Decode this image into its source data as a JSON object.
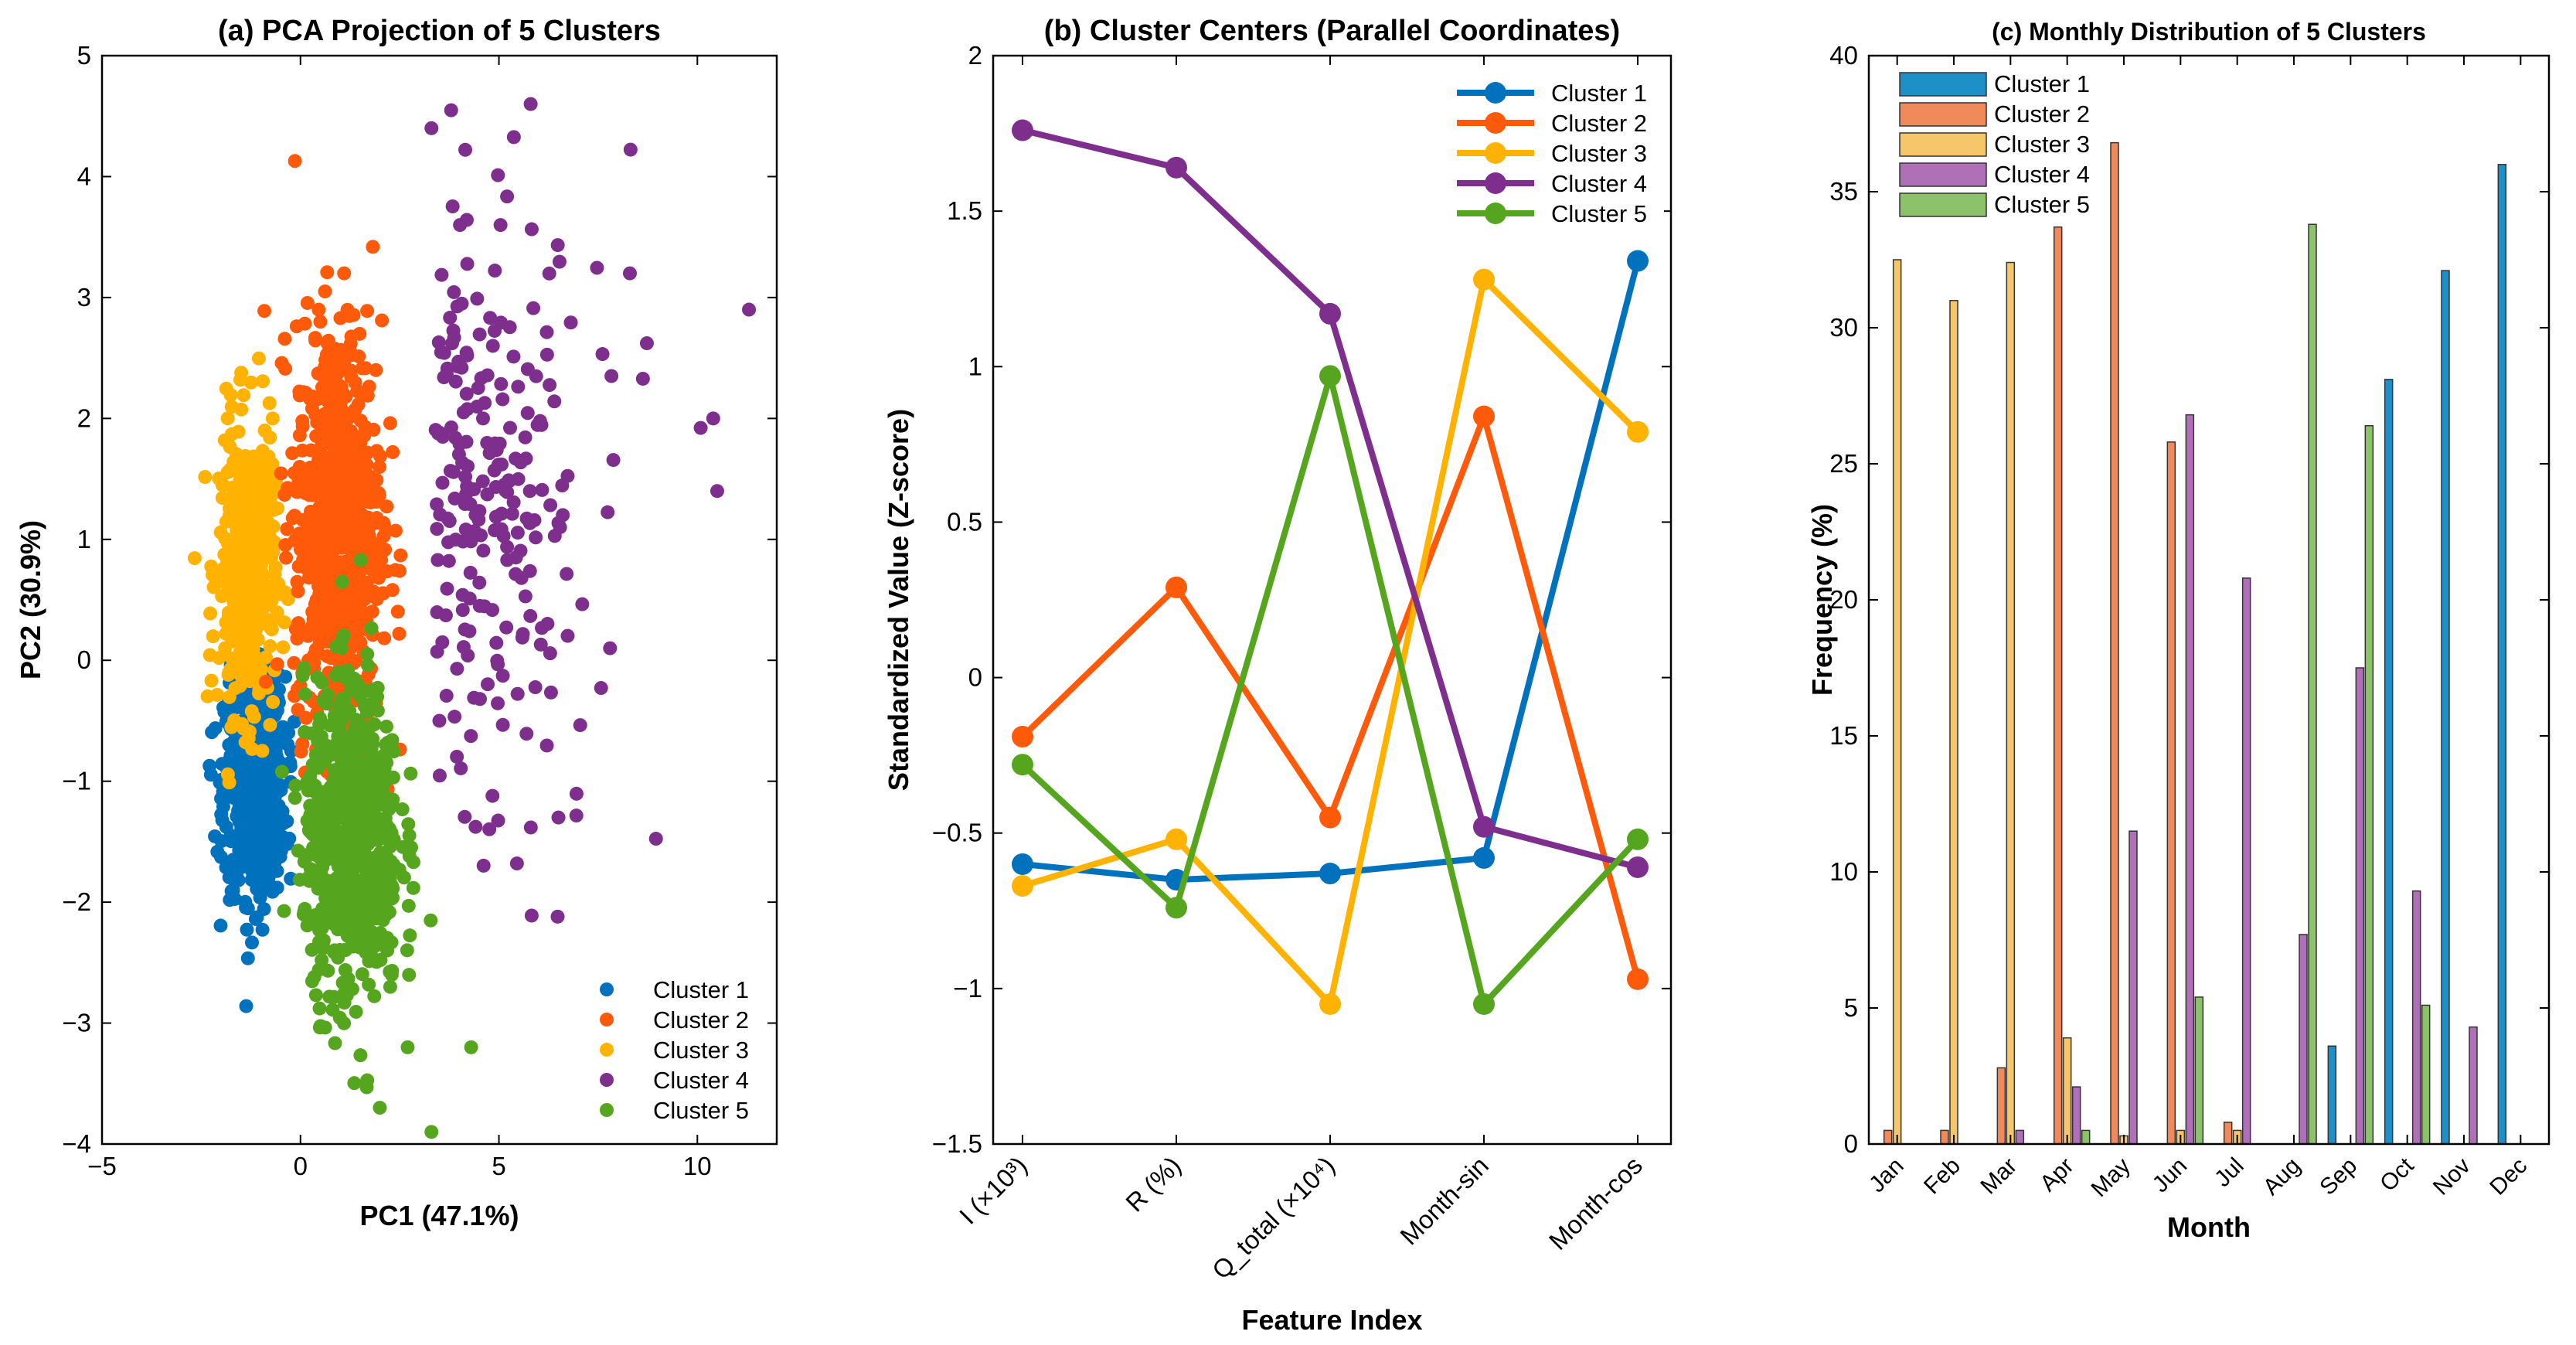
{
  "chart_data": [
    {
      "type": "scatter",
      "title": "(a) PCA Projection of 5 Clusters",
      "xlabel": "PC1 (47.1%)",
      "ylabel": "PC2 (30.9%)",
      "xlim": [
        -5,
        12
      ],
      "ylim": [
        -4,
        5
      ],
      "xticks": [
        -5,
        0,
        5,
        10
      ],
      "yticks": [
        -4,
        -3,
        -2,
        -1,
        0,
        1,
        2,
        3,
        4,
        5
      ],
      "legend_position": "bottom-right",
      "series": [
        {
          "name": "Cluster 1",
          "color": "#0072BD",
          "x": [
            -1.2,
            -1.5,
            -0.9,
            -1.8,
            -1.1,
            -0.7,
            -1.4,
            -1.6,
            -0.8,
            -1.3
          ],
          "y": [
            -0.6,
            -1.0,
            -1.4,
            -0.7,
            -1.8,
            -0.3,
            -1.2,
            -0.9,
            -1.6,
            -0.4
          ]
        },
        {
          "name": "Cluster 2",
          "color": "#FF5A0A",
          "x": [
            0.3,
            0.8,
            1.2,
            0.5,
            1.6,
            0.9,
            0.2,
            1.9,
            1.1,
            0.6
          ],
          "y": [
            0.4,
            1.2,
            2.0,
            2.8,
            0.9,
            1.6,
            0.0,
            2.4,
            3.2,
            1.9
          ]
        },
        {
          "name": "Cluster 3",
          "color": "#FFB300",
          "x": [
            -1.8,
            -1.5,
            -1.2,
            -1.0,
            -0.8,
            -1.6,
            -1.3,
            -0.9,
            -1.9,
            -0.7
          ],
          "y": [
            -0.1,
            0.3,
            0.8,
            1.2,
            1.6,
            0.5,
            1.0,
            1.9,
            0.1,
            2.0
          ]
        },
        {
          "name": "Cluster 4",
          "color": "#7E2F8E",
          "x": [
            3.3,
            5.8,
            11.3,
            8.3,
            10.5,
            10.4,
            7.8,
            4.6,
            6.5,
            3.5
          ],
          "y": [
            4.4,
            4.6,
            2.9,
            3.2,
            1.4,
            2.0,
            0.1,
            2.0,
            -1.3,
            -0.5
          ]
        },
        {
          "name": "Cluster 5",
          "color": "#55A61E",
          "x": [
            0.5,
            1.2,
            1.8,
            2.3,
            0.9,
            3.3,
            4.3,
            2.7,
            1.5,
            2.0
          ],
          "y": [
            -0.5,
            -1.2,
            -1.8,
            -2.6,
            -1.5,
            -3.9,
            -3.2,
            -3.2,
            -0.3,
            -3.7
          ]
        }
      ]
    },
    {
      "type": "line",
      "title": "(b) Cluster Centers (Parallel Coordinates)",
      "xlabel": "Feature Index",
      "ylabel": "Standardized Value (Z-score)",
      "categories": [
        "I (×10³)",
        "R (%)",
        "Q_total (×10⁴)",
        "Month-sin",
        "Month-cos"
      ],
      "ylim": [
        -1.5,
        2
      ],
      "yticks": [
        -1.5,
        -1,
        -0.5,
        0,
        0.5,
        1,
        1.5,
        2
      ],
      "legend_position": "top-right",
      "series": [
        {
          "name": "Cluster 1",
          "color": "#0072BD",
          "values": [
            -0.6,
            -0.65,
            -0.63,
            -0.58,
            1.34
          ]
        },
        {
          "name": "Cluster 2",
          "color": "#FF5A0A",
          "values": [
            -0.19,
            0.29,
            -0.45,
            0.84,
            -0.97
          ]
        },
        {
          "name": "Cluster 3",
          "color": "#FFB300",
          "values": [
            -0.67,
            -0.52,
            -1.05,
            1.28,
            0.79
          ]
        },
        {
          "name": "Cluster 4",
          "color": "#7E2F8E",
          "values": [
            1.76,
            1.64,
            1.17,
            -0.48,
            -0.61
          ]
        },
        {
          "name": "Cluster 5",
          "color": "#55A61E",
          "values": [
            -0.28,
            -0.74,
            0.97,
            -1.05,
            -0.52
          ]
        }
      ]
    },
    {
      "type": "bar",
      "title": "(c) Monthly Distribution of 5 Clusters",
      "xlabel": "Month",
      "ylabel": "Frequency (%)",
      "categories": [
        "Jan",
        "Feb",
        "Mar",
        "Apr",
        "May",
        "Jun",
        "Jul",
        "Aug",
        "Sep",
        "Oct",
        "Nov",
        "Dec"
      ],
      "ylim": [
        0,
        40
      ],
      "yticks": [
        0,
        5,
        10,
        15,
        20,
        25,
        30,
        35,
        40
      ],
      "legend_position": "top-left",
      "series": [
        {
          "name": "Cluster 1",
          "color": "#1E90C8",
          "values": [
            0,
            0,
            0,
            0,
            0,
            0,
            0,
            0,
            3.6,
            28.1,
            32.1,
            36.0
          ]
        },
        {
          "name": "Cluster 2",
          "color": "#F08A5A",
          "values": [
            0.5,
            0.5,
            2.8,
            33.7,
            36.8,
            25.8,
            0.8,
            0,
            0,
            0,
            0,
            0
          ]
        },
        {
          "name": "Cluster 3",
          "color": "#F5C76A",
          "values": [
            32.5,
            31.0,
            32.4,
            3.9,
            0.3,
            0.5,
            0.5,
            0,
            0,
            0,
            0,
            0
          ]
        },
        {
          "name": "Cluster 4",
          "color": "#B070B8",
          "values": [
            0,
            0,
            0.5,
            2.1,
            11.5,
            26.8,
            20.8,
            7.7,
            17.5,
            9.3,
            4.3,
            0
          ]
        },
        {
          "name": "Cluster 5",
          "color": "#8CC36A",
          "values": [
            0,
            0,
            0,
            0.5,
            0,
            5.4,
            0,
            33.8,
            26.4,
            5.1,
            0,
            0
          ]
        }
      ]
    }
  ]
}
